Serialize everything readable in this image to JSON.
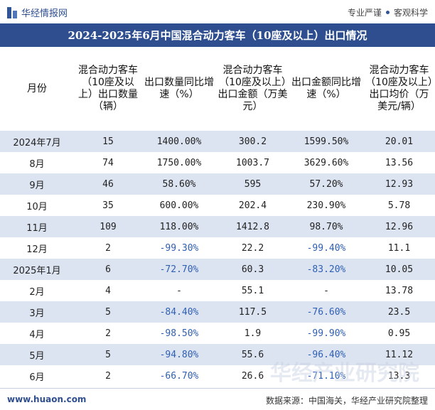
{
  "header": {
    "brand": "华经情报网",
    "tag1": "专业严谨",
    "tag2": "客观科学"
  },
  "title": "2024-2025年6月中国混合动力客车（10座及以上）出口情况",
  "columns": [
    "月份",
    "混合动力客车（10座及以上）出口数量（辆）",
    "出口数量同比增速（%）",
    "混合动力客车（10座及以上）出口金额（万美元）",
    "出口金额同比增速（%）",
    "混合动力客车（10座及以上）出口均价（万美元/辆）"
  ],
  "rows": [
    {
      "month": "2024年7月",
      "qty": "15",
      "qty_yoy": "1400.00%",
      "amount": "300.2",
      "amount_yoy": "1599.50%",
      "price": "20.01"
    },
    {
      "month": "8月",
      "qty": "74",
      "qty_yoy": "1750.00%",
      "amount": "1003.7",
      "amount_yoy": "3629.60%",
      "price": "13.56"
    },
    {
      "month": "9月",
      "qty": "46",
      "qty_yoy": "58.60%",
      "amount": "595",
      "amount_yoy": "57.20%",
      "price": "12.93"
    },
    {
      "month": "10月",
      "qty": "35",
      "qty_yoy": "600.00%",
      "amount": "202.4",
      "amount_yoy": "230.90%",
      "price": "5.78"
    },
    {
      "month": "11月",
      "qty": "109",
      "qty_yoy": "118.00%",
      "amount": "1412.8",
      "amount_yoy": "98.70%",
      "price": "12.96"
    },
    {
      "month": "12月",
      "qty": "2",
      "qty_yoy": "-99.30%",
      "amount": "22.2",
      "amount_yoy": "-99.40%",
      "price": "11.1"
    },
    {
      "month": "2025年1月",
      "qty": "6",
      "qty_yoy": "-72.70%",
      "amount": "60.3",
      "amount_yoy": "-83.20%",
      "price": "10.05"
    },
    {
      "month": "2月",
      "qty": "4",
      "qty_yoy": "-",
      "amount": "55.1",
      "amount_yoy": "-",
      "price": "13.78"
    },
    {
      "month": "3月",
      "qty": "5",
      "qty_yoy": "-84.40%",
      "amount": "117.5",
      "amount_yoy": "-76.60%",
      "price": "23.5"
    },
    {
      "month": "4月",
      "qty": "2",
      "qty_yoy": "-98.50%",
      "amount": "1.9",
      "amount_yoy": "-99.90%",
      "price": "0.95"
    },
    {
      "month": "5月",
      "qty": "5",
      "qty_yoy": "-94.80%",
      "amount": "55.6",
      "amount_yoy": "-96.40%",
      "price": "11.12"
    },
    {
      "month": "6月",
      "qty": "2",
      "qty_yoy": "-66.70%",
      "amount": "26.6",
      "amount_yoy": "-71.10%",
      "price": "13.3"
    }
  ],
  "watermark": "华经产业研究院",
  "footer": {
    "website": "www.huaon.com",
    "source": "数据来源：中国海关，华经产业研究院整理"
  }
}
